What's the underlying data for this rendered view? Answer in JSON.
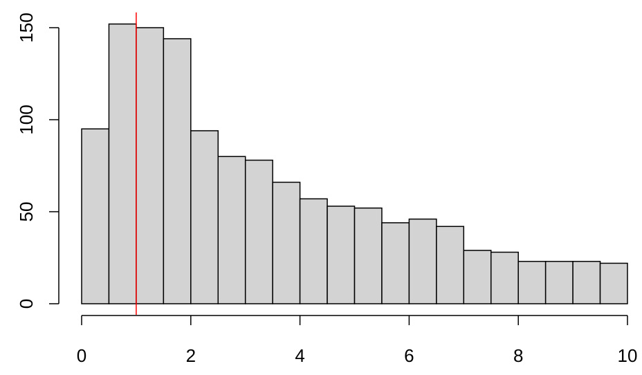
{
  "chart_data": {
    "type": "histogram",
    "bins": [
      0,
      0.5,
      1,
      1.5,
      2,
      2.5,
      3,
      3.5,
      4,
      4.5,
      5,
      5.5,
      6,
      6.5,
      7,
      7.5,
      8,
      8.5,
      9,
      9.5,
      10
    ],
    "values": [
      95,
      152,
      150,
      144,
      94,
      80,
      78,
      66,
      57,
      53,
      52,
      44,
      46,
      42,
      29,
      28,
      23,
      23,
      23,
      22
    ],
    "color": "#d3d3d3",
    "xlim": [
      0,
      10
    ],
    "xticks": [
      0,
      2,
      4,
      6,
      8,
      10
    ],
    "ylim": [
      0,
      150
    ],
    "yticks": [
      0,
      50,
      100,
      150
    ],
    "vline": {
      "x": 1,
      "color": "#ff0000"
    }
  }
}
